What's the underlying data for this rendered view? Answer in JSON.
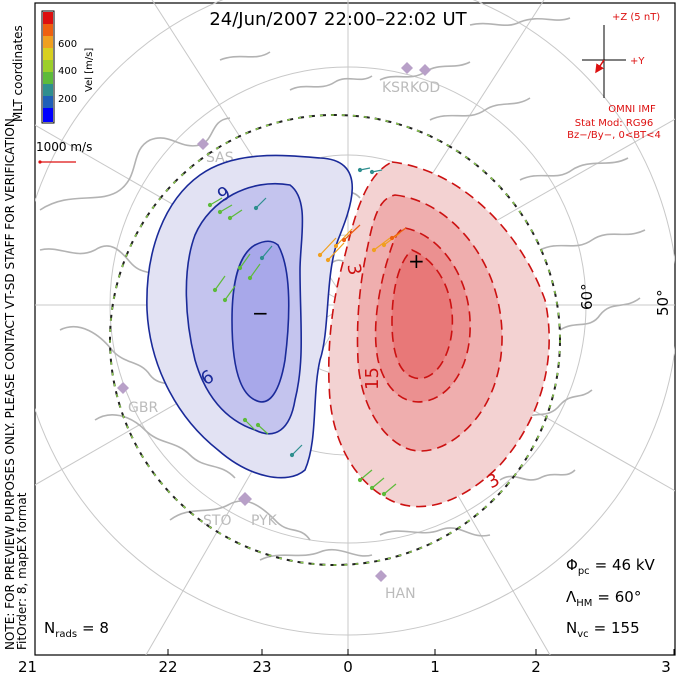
{
  "title": "24/Jun/2007 22:00–22:02 UT",
  "colorbar": {
    "label": "Vel [m/s]",
    "ticks": [
      "600",
      "400",
      "200"
    ],
    "colors": [
      "#0000ff",
      "#1f5fb8",
      "#2f8f8f",
      "#5dbb3a",
      "#9ccf2a",
      "#d8d020",
      "#f0a020",
      "#ee6010",
      "#dd1010"
    ]
  },
  "scale_label": "1000 m/s",
  "side_note_1": "NOTE: FOR PREVIEW PURPOSES ONLY. PLEASE CONTACT VT-SD STAFF FOR VERIFICATION.",
  "side_note_2": "FitOrder: 8, mapEX format",
  "coord_label": "MLT coordinates",
  "imf": {
    "z_label": "+Z (5 nT)",
    "y_label": "+Y",
    "omni": "OMNI IMF",
    "stat_mod": "Stat Mod: RG96",
    "bz_by": "Bz−/By−, 0<BT<4"
  },
  "stations": [
    "KSR",
    "KOD",
    "SAS",
    "GBR",
    "STO",
    "PYK",
    "HAN"
  ],
  "lat_labels": [
    "60°",
    "50°"
  ],
  "contour_labels": [
    "9",
    "9",
    "3",
    "15",
    "3",
    "−",
    "+"
  ],
  "stats": {
    "phi_label": "Φ",
    "phi_sub": "pc",
    "phi_value": "= 46 kV",
    "lambda_label": "Λ",
    "lambda_sub": "HM",
    "lambda_value": "= 60°",
    "nvc_label": "N",
    "nvc_sub": "vc",
    "nvc_value": "= 155",
    "nrads_label": "N",
    "nrads_sub": "rads",
    "nrads_value": "= 8"
  },
  "mlt_ticks": [
    "21",
    "22",
    "23",
    "0",
    "1",
    "2",
    "3"
  ],
  "colors": {
    "positive_fill": "#ee7777",
    "negative_fill": "#8888ee",
    "positive_line": "#cc1111",
    "negative_line": "#1a2a99",
    "coast": "#b3b3b3",
    "grid": "#c8c8c8"
  }
}
